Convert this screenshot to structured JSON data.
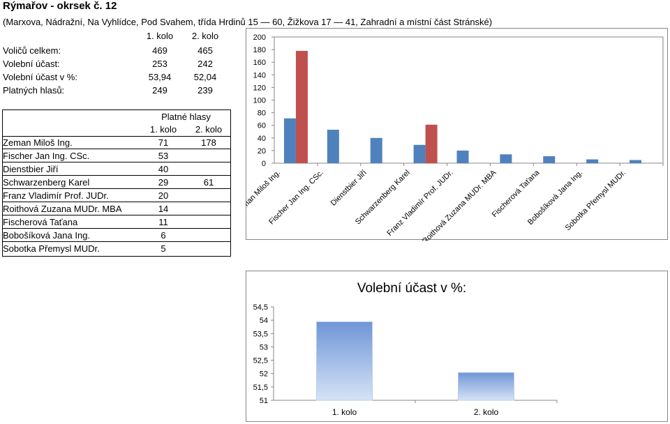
{
  "header": {
    "title": "Rýmařov - okrsek č. 12",
    "subtitle": "(Marxova, Nádražní, Na Vyhlídce, Pod Svahem, třída Hrdinů 15 — 60, Žižkova 17 — 41, Zahradní a místní část Stránské)"
  },
  "stats": {
    "col1": "1. kolo",
    "col2": "2. kolo",
    "rows": [
      {
        "label": "Voličů celkem:",
        "v1": "469",
        "v2": "465"
      },
      {
        "label": "Volební účast:",
        "v1": "253",
        "v2": "242"
      },
      {
        "label": "Volební účast v %:",
        "v1": "53,94",
        "v2": "52,04"
      },
      {
        "label": "Platných hlasů:",
        "v1": "249",
        "v2": "239"
      }
    ]
  },
  "candidates_table": {
    "header": "Platné hlasy",
    "col1": "1. kolo",
    "col2": "2. kolo",
    "rows": [
      {
        "name": "Zeman Miloš Ing.",
        "v1": "71",
        "v2": "178"
      },
      {
        "name": "Fischer Jan Ing. CSc.",
        "v1": "53",
        "v2": ""
      },
      {
        "name": "Dienstbier Jiří",
        "v1": "40",
        "v2": ""
      },
      {
        "name": "Schwarzenberg Karel",
        "v1": "29",
        "v2": "61"
      },
      {
        "name": "Franz Vladimír Prof. JUDr.",
        "v1": "20",
        "v2": ""
      },
      {
        "name": "Roithová Zuzana MUDr. MBA",
        "v1": "14",
        "v2": ""
      },
      {
        "name": "Fischerová Taťana",
        "v1": "11",
        "v2": ""
      },
      {
        "name": "Bobošíková Jana Ing.",
        "v1": "6",
        "v2": ""
      },
      {
        "name": "Sobotka Přemysl MUDr.",
        "v1": "5",
        "v2": ""
      }
    ]
  },
  "chart_data": [
    {
      "type": "bar",
      "categories": [
        "Zeman Miloš Ing.",
        "Fischer Jan Ing. CSc.",
        "Dienstbier Jiří",
        "Schwarzenberg Karel",
        "Franz Vladimír Prof. JUDr.",
        "Roithová Zuzana MUDr. MBA",
        "Fischerová Taťana",
        "Bobošíková Jana Ing.",
        "Sobotka Přemysl MUDr."
      ],
      "series": [
        {
          "values": [
            71,
            53,
            40,
            29,
            20,
            14,
            11,
            6,
            5
          ],
          "color": "#4f81bd"
        },
        {
          "values": [
            178,
            null,
            null,
            61,
            null,
            null,
            null,
            null,
            null
          ],
          "color": "#c0504d"
        }
      ],
      "yticks": [
        "0",
        "20",
        "40",
        "60",
        "80",
        "100",
        "120",
        "140",
        "160",
        "180",
        "200"
      ],
      "ylim": [
        0,
        200
      ],
      "grid": false
    },
    {
      "type": "bar",
      "title": "Volební účast v %:",
      "categories": [
        "1. kolo",
        "2. kolo"
      ],
      "values": [
        53.94,
        52.04
      ],
      "yticks": [
        "51",
        "51,5",
        "52",
        "52,5",
        "53",
        "53,5",
        "54",
        "54,5"
      ],
      "ylim": [
        51,
        54.5
      ],
      "color": "#95b3e0",
      "grid": false
    }
  ]
}
